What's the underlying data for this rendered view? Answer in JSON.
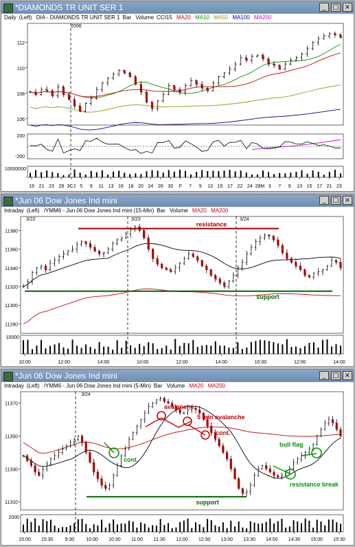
{
  "colors": {
    "ma20": "#cc0000",
    "ma10": "#009900",
    "ma50": "#999900",
    "ma100": "#000099",
    "ma200": "#cc00cc",
    "cci": "#000000",
    "support": "#006600",
    "resistance": "#990000",
    "annotation_red": "#cc0000",
    "annotation_green": "#009900"
  },
  "windows": [
    {
      "title": "*DIAMONDS TR UNIT SER 1",
      "header": {
        "period": "Daily",
        "side": "(Left)",
        "desc": "DIA - DIAMONDS TR UNIT SER 1",
        "type": "Bar",
        "vol": "Volume",
        "ind": "CCI15",
        "mas": [
          {
            "label": "MA20",
            "color": "#cc0000"
          },
          {
            "label": "MA10",
            "color": "#009900"
          },
          {
            "label": "MA50",
            "color": "#999900"
          },
          {
            "label": "MA100",
            "color": "#000099"
          },
          {
            "label": "MA200",
            "color": "#cc00cc"
          }
        ]
      },
      "year_label": "2006",
      "y_ticks": [
        "112",
        "110",
        "108",
        "106"
      ],
      "cci_ticks": [
        "200",
        "-200"
      ],
      "volume_label": "10000000",
      "x_ticks": [
        "19",
        "21",
        "23",
        "28",
        "3CJ",
        "5",
        "9",
        "11",
        "13",
        "16",
        "18",
        "20",
        "24",
        "26",
        "30",
        "F",
        "7",
        "9",
        "13",
        "15",
        "17",
        "22",
        "24",
        "28M",
        "3",
        "7",
        "9",
        "13",
        "15",
        "17",
        "21",
        "23"
      ]
    },
    {
      "title": "*Jun 06  Dow Jones Ind mini",
      "header": {
        "period": "Intraday",
        "side": "(Left)",
        "desc": "/YMM6 - Jun 06  Dow Jones Ind mini (15-Min)",
        "type": "Bar",
        "vol": "Volume",
        "mas": [
          {
            "label": "MA20",
            "color": "#cc0000"
          },
          {
            "label": "MA200",
            "color": "#cc0000"
          }
        ]
      },
      "date_labels": [
        "3/22",
        "3/23",
        "3/24"
      ],
      "y_ticks": [
        "11380",
        "11360",
        "11340",
        "11320",
        "11300",
        "11280"
      ],
      "volume_label": "10000",
      "x_ticks": [
        "10:00",
        "12:00",
        "14:00",
        "10:00",
        "12:00",
        "14:00",
        "10:00",
        "12:00",
        "14:00"
      ],
      "annotations": {
        "resistance": "resistance",
        "support": "support"
      }
    },
    {
      "title": "*Jun 06  Dow Jones Ind mini",
      "header": {
        "period": "Intraday",
        "side": "(Left)",
        "desc": "/YMM6 - Jun 06  Dow Jones Ind mini (5-Min)",
        "type": "Bar",
        "vol": "Volume",
        "mas": [
          {
            "label": "MA20",
            "color": "#cc0000"
          },
          {
            "label": "MA200",
            "color": "#cc0000"
          }
        ]
      },
      "date_labels": [
        "3/24"
      ],
      "y_ticks": [
        "11370",
        "11350",
        "11330",
        "11310"
      ],
      "volume_label": "2000",
      "x_ticks": [
        "15:00",
        "15:30",
        "9:30",
        "10:00",
        "10:30",
        "11:00",
        "11:30",
        "12:00",
        "12:30",
        "13:00",
        "13:30",
        "14:00",
        "14:30",
        "15:00",
        "15:30"
      ],
      "annotations": {
        "avalanche": "avalanche",
        "avalanche5": "5 min avalanche",
        "cont_red": "cont.",
        "cont_green": "cont.",
        "support": "support",
        "bull_flag": "bull flag",
        "resistance_break": "resistance break"
      }
    }
  ],
  "chart_data": [
    {
      "type": "bar",
      "title": "DIA - DIAMONDS TR UNIT SER 1",
      "ylim": [
        105.5,
        113.5
      ],
      "close": [
        108.1,
        107.9,
        108.3,
        108.2,
        107.8,
        108.5,
        107.9,
        107.5,
        107.0,
        106.6,
        107.2,
        107.6,
        108.3,
        108.8,
        109.2,
        109.5,
        109.8,
        109.6,
        109.3,
        108.7,
        108.1,
        107.3,
        106.8,
        107.4,
        107.9,
        108.6,
        108.3,
        108.1,
        108.6,
        109.0,
        108.7,
        108.4,
        108.2,
        108.8,
        109.3,
        109.6,
        109.9,
        110.3,
        110.8,
        110.6,
        110.9,
        111.0,
        110.7,
        110.3,
        110.2,
        109.9,
        110.3,
        110.6,
        110.8,
        111.1,
        111.5,
        112.0,
        112.3,
        112.5,
        112.7,
        112.6,
        112.4
      ]
    },
    {
      "type": "bar",
      "title": "/YMM6 - Jun 06 Dow Jones Ind mini (15-Min)",
      "ylim": [
        11270,
        11395
      ],
      "close": [
        11320,
        11325,
        11335,
        11340,
        11342,
        11338,
        11345,
        11348,
        11352,
        11355,
        11358,
        11360,
        11365,
        11368,
        11366,
        11362,
        11358,
        11355,
        11356,
        11360,
        11366,
        11370,
        11372,
        11376,
        11381,
        11384,
        11380,
        11372,
        11360,
        11350,
        11344,
        11340,
        11338,
        11336,
        11340,
        11345,
        11350,
        11355,
        11352,
        11348,
        11342,
        11338,
        11332,
        11328,
        11324,
        11320,
        11326,
        11332,
        11340,
        11346,
        11355,
        11362,
        11368,
        11372,
        11375,
        11374,
        11370,
        11364,
        11356,
        11350,
        11346,
        11342,
        11338,
        11332,
        11330,
        11334,
        11336,
        11338,
        11342,
        11348,
        11346,
        11340
      ],
      "lines": {
        "resistance": 11382,
        "support": 11315
      }
    },
    {
      "type": "bar",
      "title": "/YMM6 - Jun 06 Dow Jones Ind mini (5-Min)",
      "ylim": [
        11305,
        11377
      ],
      "close": [
        11338,
        11335,
        11332,
        11328,
        11326,
        11330,
        11333,
        11336,
        11338,
        11340,
        11342,
        11344,
        11346,
        11348,
        11350,
        11346,
        11340,
        11334,
        11328,
        11324,
        11320,
        11318,
        11320,
        11326,
        11332,
        11338,
        11342,
        11348,
        11352,
        11356,
        11360,
        11364,
        11368,
        11370,
        11372,
        11373,
        11371,
        11370,
        11368,
        11366,
        11364,
        11364,
        11366,
        11367,
        11366,
        11364,
        11360,
        11356,
        11352,
        11348,
        11344,
        11340,
        11336,
        11330,
        11324,
        11318,
        11315,
        11316,
        11320,
        11326,
        11330,
        11332,
        11330,
        11328,
        11326,
        11325,
        11326,
        11328,
        11330,
        11334,
        11336,
        11338,
        11340,
        11342,
        11345,
        11350,
        11354,
        11358,
        11360,
        11358,
        11354,
        11350
      ],
      "lines": {
        "support": 11313
      }
    }
  ]
}
